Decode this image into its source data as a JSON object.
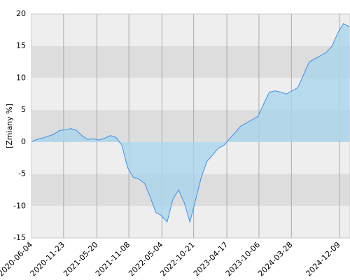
{
  "chart_data": {
    "type": "area",
    "y_label": "[Zmiany %]",
    "x": [
      "2020-06-04",
      "2020-07-01",
      "2020-08-01",
      "2020-09-01",
      "2020-10-01",
      "2020-11-01",
      "2020-12-01",
      "2021-01-01",
      "2021-02-01",
      "2021-03-01",
      "2021-04-01",
      "2021-05-01",
      "2021-06-01",
      "2021-07-01",
      "2021-08-01",
      "2021-09-01",
      "2021-10-01",
      "2021-11-01",
      "2021-12-01",
      "2022-01-01",
      "2022-02-01",
      "2022-03-01",
      "2022-04-01",
      "2022-05-01",
      "2022-06-01",
      "2022-07-01",
      "2022-08-01",
      "2022-09-01",
      "2022-10-01",
      "2022-11-01",
      "2022-12-01",
      "2023-01-01",
      "2023-02-01",
      "2023-03-01",
      "2023-04-01",
      "2023-05-01",
      "2023-06-01",
      "2023-07-01",
      "2023-08-01",
      "2023-09-01",
      "2023-10-01",
      "2023-11-01",
      "2023-12-01",
      "2024-01-01",
      "2024-02-01",
      "2024-03-01",
      "2024-04-01",
      "2024-05-01",
      "2024-06-01",
      "2024-07-01",
      "2024-08-01",
      "2024-09-01",
      "2024-10-01",
      "2024-11-01",
      "2024-12-01",
      "2025-01-01",
      "2025-02-01"
    ],
    "series": [
      {
        "color": "#3f8fe8",
        "fill": "#a9d6ec",
        "values": [
          0,
          0.4,
          0.6,
          0.9,
          1.2,
          1.8,
          1.9,
          2.1,
          1.8,
          1.0,
          0.4,
          0.5,
          0.3,
          0.6,
          1.0,
          0.7,
          -0.5,
          -4.0,
          -5.5,
          -5.8,
          -6.5,
          -8.5,
          -11.0,
          -11.5,
          -12.5,
          -9.0,
          -7.5,
          -9.5,
          -12.5,
          -9.0,
          -5.5,
          -3.0,
          -2.0,
          -1.0,
          -0.5,
          0.5,
          1.5,
          2.5,
          3.0,
          3.5,
          4.0,
          6.0,
          7.8,
          8.0,
          7.8,
          7.5,
          8.0,
          8.5,
          10.5,
          12.5,
          13.0,
          13.5,
          14.0,
          15.0,
          17.0,
          18.5,
          18.0
        ]
      }
    ],
    "xlim": [
      "2020-06-04",
      "2025-02-05"
    ],
    "xticks": [
      "2020-06-04",
      "2020-11-23",
      "2021-05-20",
      "2021-11-08",
      "2022-05-04",
      "2022-10-21",
      "2023-04-17",
      "2023-10-06",
      "2024-03-28",
      "2024-12-09"
    ],
    "ylim": [
      -15,
      20
    ],
    "yticks": [
      -15,
      -10,
      -5,
      0,
      5,
      10,
      15,
      20
    ],
    "grid": true
  }
}
